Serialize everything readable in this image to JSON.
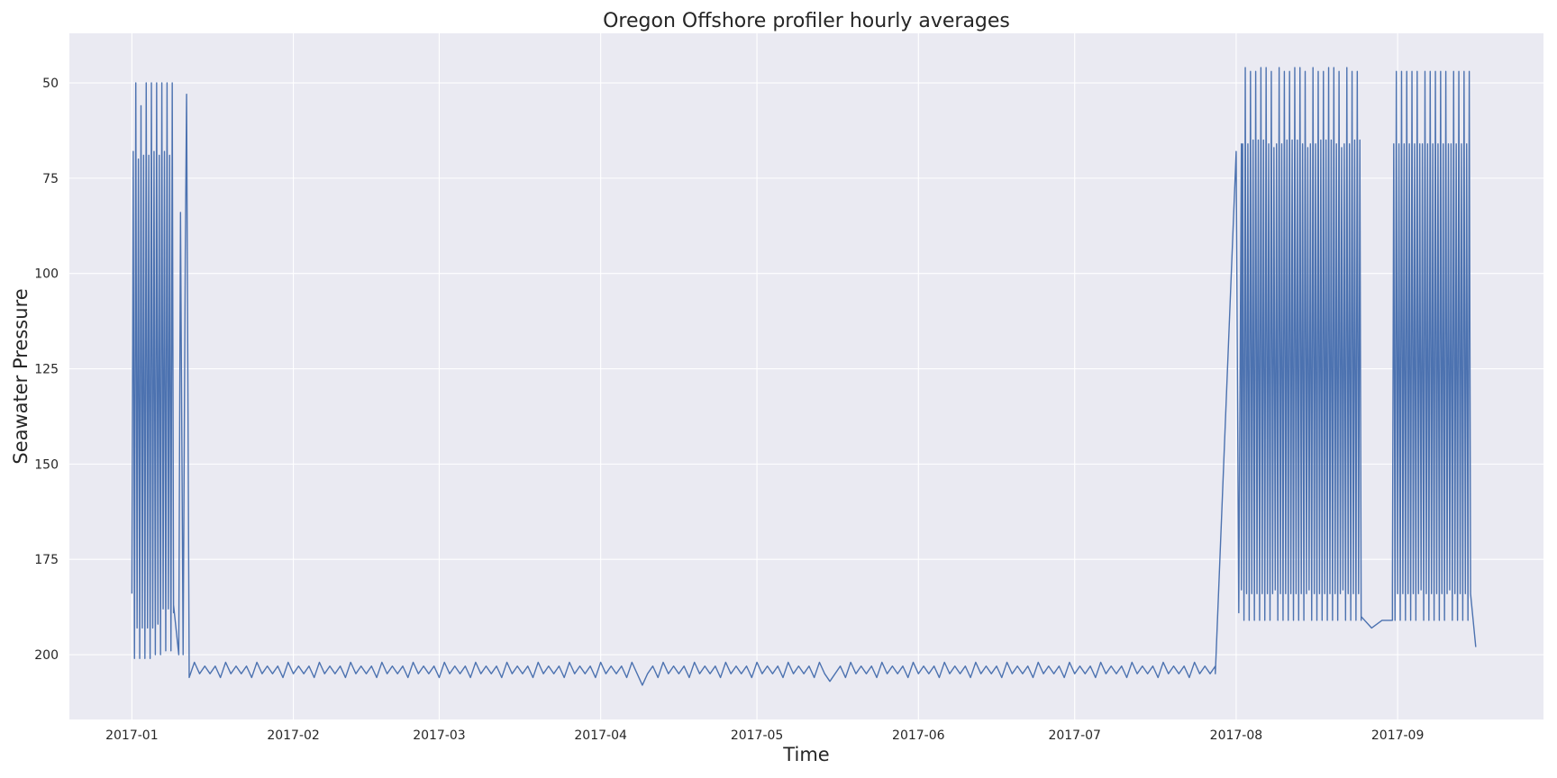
{
  "chart_data": {
    "type": "line",
    "title": "Oregon Offshore profiler hourly averages",
    "xlabel": "Time",
    "ylabel": "Seawater Pressure",
    "y_axis_inverted": true,
    "grid": true,
    "background_color": "#eaeaf2",
    "grid_color": "#ffffff",
    "xlim": [
      "2016-12-20",
      "2017-09-29"
    ],
    "ylim": [
      37,
      217
    ],
    "x_ticks": [
      "2017-01",
      "2017-02",
      "2017-03",
      "2017-04",
      "2017-05",
      "2017-06",
      "2017-07",
      "2017-08",
      "2017-09"
    ],
    "y_ticks": [
      50,
      75,
      100,
      125,
      150,
      175,
      200
    ],
    "series": [
      {
        "color": "#4c72b0",
        "segments": [
          {
            "pattern": "oscillating",
            "start": "2017-01-01",
            "end": "2017-01-09",
            "period_days": 0.5,
            "shallow_values": [
              68,
              50,
              70,
              56,
              69,
              50,
              69,
              50,
              68,
              50,
              69,
              50,
              68,
              50,
              69,
              50,
              69
            ],
            "deep_values": [
              184,
              201,
              193,
              201,
              193,
              201,
              193,
              201,
              193,
              200,
              192,
              200,
              188,
              199,
              188,
              199,
              189
            ]
          },
          {
            "pattern": "points",
            "x": [
              "2017-01-09",
              "2017-01-10",
              "2017-01-10 08:00",
              "2017-01-10 20:00",
              "2017-01-11 06:00",
              "2017-01-11 12:00",
              "2017-01-12 00:00"
            ],
            "y": [
              187,
              200,
              84,
              200,
              95,
              53,
              205
            ]
          },
          {
            "pattern": "oscillating",
            "start": "2017-01-12",
            "end": "2017-07-28",
            "period_days": 2,
            "shallow_values": [
              202,
              203,
              203
            ],
            "deep_values": [
              206,
              205,
              205
            ],
            "spikes": [
              {
                "x": "2017-04-09",
                "y": 208
              },
              {
                "x": "2017-05-15",
                "y": 207
              }
            ]
          },
          {
            "pattern": "points",
            "x": [
              "2017-07-28",
              "2017-08-01",
              "2017-08-01 12:00",
              "2017-08-02"
            ],
            "y": [
              205,
              68,
              189,
              66
            ]
          },
          {
            "pattern": "oscillating",
            "start": "2017-08-02",
            "end": "2017-08-25",
            "period_days": 0.5,
            "shallow_values": [
              66,
              46,
              66,
              47,
              65,
              47,
              65,
              46,
              65,
              46,
              66,
              47,
              67
            ],
            "deep_values": [
              183,
              191,
              184,
              191,
              184,
              191,
              184,
              191,
              184,
              191,
              184,
              191,
              184
            ]
          },
          {
            "pattern": "points",
            "x": [
              "2017-08-25",
              "2017-08-27",
              "2017-08-29",
              "2017-08-31"
            ],
            "y": [
              190,
              193,
              191,
              191
            ]
          },
          {
            "pattern": "oscillating",
            "start": "2017-08-31",
            "end": "2017-09-15",
            "period_days": 0.5,
            "shallow_values": [
              66,
              47,
              66,
              47,
              66,
              47,
              66,
              47,
              66,
              47,
              66
            ],
            "deep_values": [
              183,
              191,
              184,
              191,
              184,
              191,
              184,
              191,
              184,
              191,
              184
            ],
            "end_point": {
              "x": "2017-09-16",
              "y": 198
            }
          }
        ]
      }
    ]
  }
}
